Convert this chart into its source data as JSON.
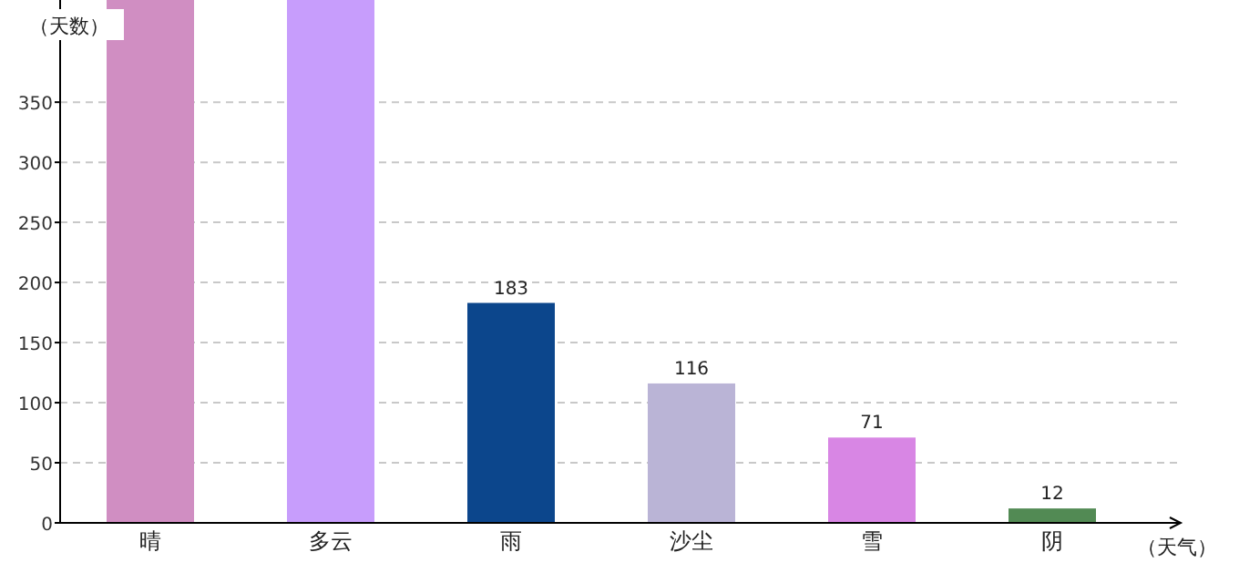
{
  "chart_data": {
    "type": "bar",
    "xlabel": "（天气）",
    "ylabel": "（天数）",
    "categories": [
      "晴",
      "多云",
      "雨",
      "沙尘",
      "雪",
      "阴"
    ],
    "values": [
      435,
      435,
      183,
      116,
      71,
      12
    ],
    "colors": [
      "#d08ec2",
      "#c79dfc",
      "#0c468c",
      "#bab4d6",
      "#d886e4",
      "#528a54"
    ],
    "value_labels": [
      null,
      null,
      "183",
      "116",
      "71",
      "12"
    ],
    "ylim": [
      0,
      435
    ],
    "yticks": [
      0,
      50,
      100,
      150,
      200,
      250,
      300,
      350
    ],
    "grid": "y"
  }
}
